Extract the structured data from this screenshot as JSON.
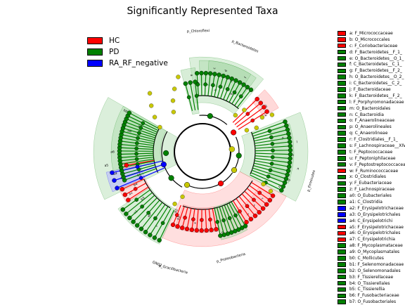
{
  "colors": {
    "HC": "#ff0000",
    "PD": "#008000",
    "RA_RF_negative": "#0000ff",
    "none": "#c8c800",
    "HC_shade": "#ffc0c0",
    "PD_shade": "#b0dcb0",
    "RA_shade": "#b8b8ff"
  },
  "chart_data": {
    "type": "cladogram",
    "title": "Significantly Represented Taxa",
    "classes": [
      {
        "name": "HC",
        "color": "#ff0000"
      },
      {
        "name": "PD",
        "color": "#008000"
      },
      {
        "name": "RA_RF_negative",
        "color": "#0000ff"
      }
    ],
    "outer_labels": [
      {
        "text": "p_Chloroflexi",
        "class": "PD"
      },
      {
        "text": "p_Bacteroidetes",
        "class": "PD"
      },
      {
        "text": "p_Firmicutes",
        "class": "PD"
      },
      {
        "text": "p_Proteobacteria",
        "class": "HC"
      },
      {
        "text": "p_Gracilibacteria",
        "class": "HC"
      },
      {
        "text": "GN02",
        "class": "HC"
      }
    ],
    "sectors": [
      {
        "class": "PD",
        "from": 0,
        "to": 58
      },
      {
        "class": "HC",
        "from": 58,
        "to": 66
      },
      {
        "class": "PD",
        "from": 66,
        "to": 118
      },
      {
        "class": "HC",
        "from": 118,
        "to": 205
      },
      {
        "class": "PD",
        "from": 205,
        "to": 235
      },
      {
        "class": "HC",
        "from": 235,
        "to": 246
      },
      {
        "class": "RA_RF_negative",
        "from": 246,
        "to": 258
      },
      {
        "class": "HC",
        "from": 258,
        "to": 262
      },
      {
        "class": "PD",
        "from": 262,
        "to": 360
      }
    ],
    "taxa": [
      {
        "key": "a",
        "name": "F_Micrococcaceae",
        "class": "HC"
      },
      {
        "key": "b",
        "name": "O_Micrococcales",
        "class": "HC"
      },
      {
        "key": "c",
        "name": "F_Coriobacteriaceae",
        "class": "HC"
      },
      {
        "key": "d",
        "name": "F_Bacteroidetes__F_1_",
        "class": "PD"
      },
      {
        "key": "e",
        "name": "O_Bacteroidetes__O_1_",
        "class": "PD"
      },
      {
        "key": "f",
        "name": "C_Bacteroidetes__C_1_",
        "class": "PD"
      },
      {
        "key": "g",
        "name": "F_Bacteroidetes__F_2_",
        "class": "PD"
      },
      {
        "key": "h",
        "name": "O_Bacteroidetes__O_2_",
        "class": "PD"
      },
      {
        "key": "i",
        "name": "C_Bacteroidetes__C_2_",
        "class": "PD"
      },
      {
        "key": "j",
        "name": "F_Bacteroidaceae",
        "class": "PD"
      },
      {
        "key": "k",
        "name": "F_Bacteroidetes__F_2_",
        "class": "PD"
      },
      {
        "key": "l",
        "name": "F_Porphyromonadaceae",
        "class": "PD"
      },
      {
        "key": "m",
        "name": "O_Bacteroidales",
        "class": "PD"
      },
      {
        "key": "n",
        "name": "C_Bacteroidia",
        "class": "PD"
      },
      {
        "key": "o",
        "name": "F_Anaerolineaceae",
        "class": "PD"
      },
      {
        "key": "p",
        "name": "O_Anaerolineales",
        "class": "PD"
      },
      {
        "key": "q",
        "name": "C_Anaerolineae",
        "class": "PD"
      },
      {
        "key": "r",
        "name": "F_Clostridiales__F_1_",
        "class": "PD"
      },
      {
        "key": "s",
        "name": "F_Lachnospiraceae__XIV",
        "class": "PD"
      },
      {
        "key": "t",
        "name": "F_Peptococcaceae",
        "class": "PD"
      },
      {
        "key": "u",
        "name": "F_Peptoniphilaceae",
        "class": "PD"
      },
      {
        "key": "v",
        "name": "F_Peptostreptococcaceae",
        "class": "PD"
      },
      {
        "key": "w",
        "name": "F_Ruminococcaceae",
        "class": "HC"
      },
      {
        "key": "x",
        "name": "O_Clostridiales",
        "class": "PD"
      },
      {
        "key": "y",
        "name": "F_Eubacteriaceae",
        "class": "PD"
      },
      {
        "key": "z",
        "name": "F_Lachnospiraceae",
        "class": "PD"
      },
      {
        "key": "a0",
        "name": "O_Eubacteriales",
        "class": "PD"
      },
      {
        "key": "a1",
        "name": "C_Clostridia",
        "class": "PD"
      },
      {
        "key": "a2",
        "name": "F_Erysipelotrichaceae",
        "class": "RA_RF_negative"
      },
      {
        "key": "a3",
        "name": "O_Erysipelotrichales",
        "class": "RA_RF_negative"
      },
      {
        "key": "a4",
        "name": "C_Erysipelotrichi",
        "class": "RA_RF_negative"
      },
      {
        "key": "a5",
        "name": "F_Erysipelotrichaceae",
        "class": "HC"
      },
      {
        "key": "a6",
        "name": "O_Erysipelotrichales",
        "class": "HC"
      },
      {
        "key": "a7",
        "name": "C_Erysipelotrichia",
        "class": "HC"
      },
      {
        "key": "a8",
        "name": "F_Mycoplasmataceae",
        "class": "PD"
      },
      {
        "key": "a9",
        "name": "O_Mycoplasmatales",
        "class": "PD"
      },
      {
        "key": "b0",
        "name": "C_Mollicutes",
        "class": "PD"
      },
      {
        "key": "b1",
        "name": "F_Selenomonadaceae",
        "class": "PD"
      },
      {
        "key": "b2",
        "name": "O_Selenomonadales",
        "class": "PD"
      },
      {
        "key": "b3",
        "name": "F_Tissierellaceae",
        "class": "PD"
      },
      {
        "key": "b4",
        "name": "O_Tissierellales",
        "class": "PD"
      },
      {
        "key": "b5",
        "name": "C_Tissierellia",
        "class": "PD"
      },
      {
        "key": "b6",
        "name": "F_Fusobacteriaceae",
        "class": "PD"
      },
      {
        "key": "b7",
        "name": "O_Fusobacteriales",
        "class": "PD"
      }
    ]
  }
}
